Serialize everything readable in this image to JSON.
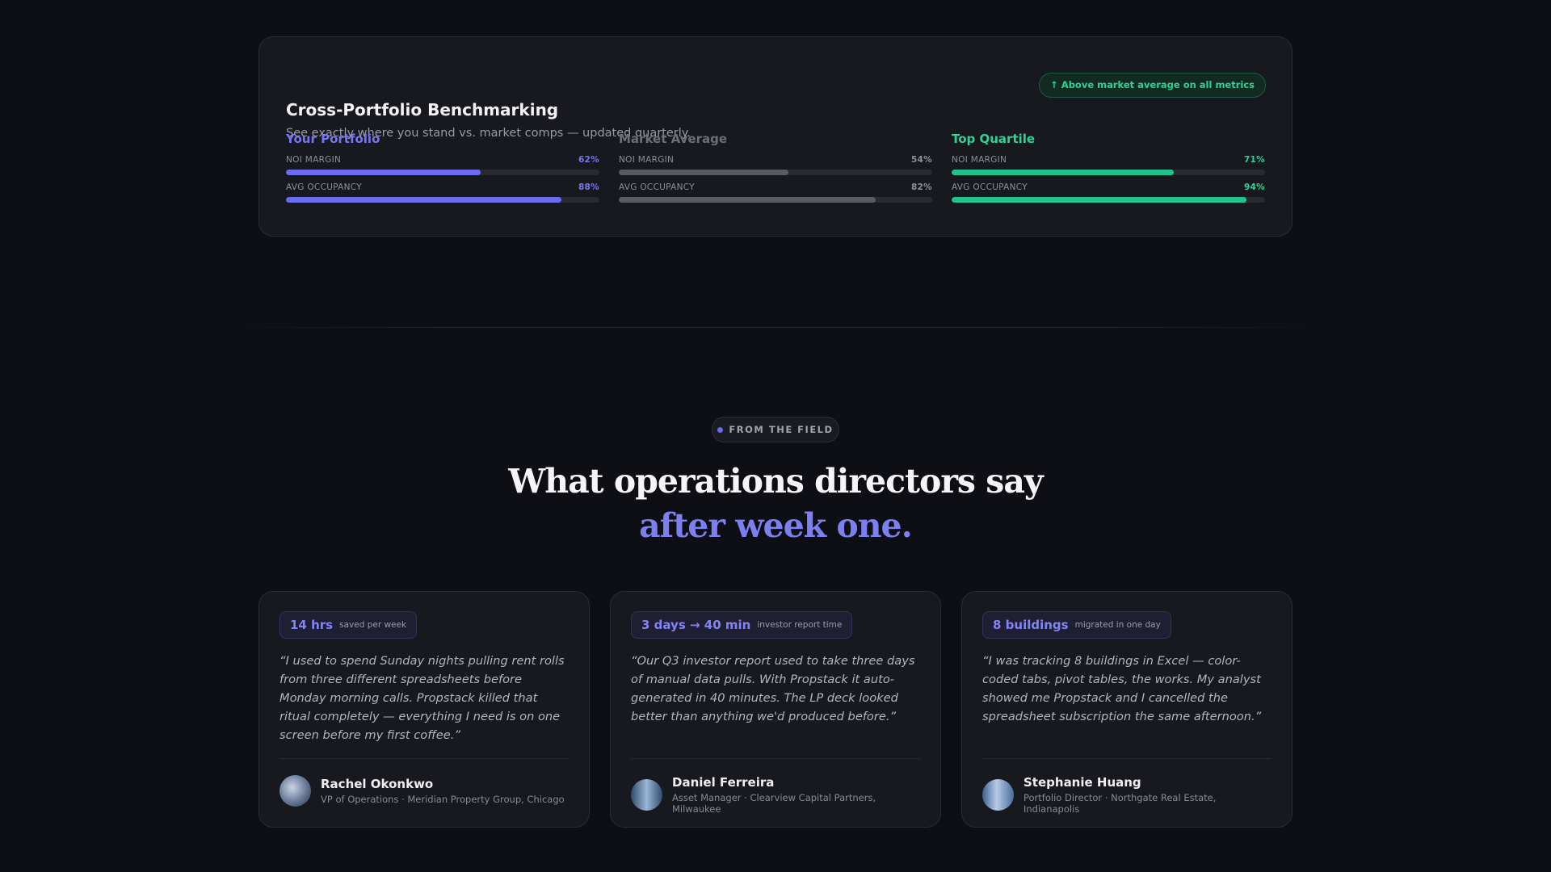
{
  "benchmark": {
    "title": "Cross-Portfolio Benchmarking",
    "subtitle": "See exactly where you stand vs. market comps — updated quarterly.",
    "badge": "↑ Above market average on all metrics",
    "columns": [
      {
        "name": "Your Portfolio",
        "color": "#6a6cf0",
        "name_color": "#7577f2",
        "metrics": [
          {
            "label": "NOI MARGIN",
            "value": 62,
            "value_label": "62%"
          },
          {
            "label": "AVG OCCUPANCY",
            "value": 88,
            "value_label": "88%"
          }
        ]
      },
      {
        "name": "Market Average",
        "color": "#5a5a62",
        "name_color": "#6e6e76",
        "metrics": [
          {
            "label": "NOI MARGIN",
            "value": 54,
            "value_label": "54%"
          },
          {
            "label": "AVG OCCUPANCY",
            "value": 82,
            "value_label": "82%"
          }
        ]
      },
      {
        "name": "Top Quartile",
        "color": "#22c38a",
        "name_color": "#2fd393",
        "metrics": [
          {
            "label": "NOI MARGIN",
            "value": 71,
            "value_label": "71%"
          },
          {
            "label": "AVG OCCUPANCY",
            "value": 94,
            "value_label": "94%"
          }
        ]
      }
    ]
  },
  "testimonials": {
    "badge": "FROM THE FIELD",
    "heading": "What operations directors say",
    "heading_accent": "after week one.",
    "cards": [
      {
        "stat": "14 hrs",
        "stat_label": "saved per week",
        "quote": "“I used to spend Sunday nights pulling rent rolls from three different spreadsheets before Monday morning calls. Propstack killed that ritual completely — everything I need is on one screen before my first coffee.”",
        "name": "Rachel Okonkwo",
        "role": "VP of Operations · Meridian Property Group, Chicago"
      },
      {
        "stat": "3 days → 40 min",
        "stat_label": "investor report time",
        "quote": "“Our Q3 investor report used to take three days of manual data pulls. With Propstack it auto-generated in 40 minutes. The LP deck looked better than anything we'd produced before.”",
        "name": "Daniel Ferreira",
        "role": "Asset Manager · Clearview Capital Partners, Milwaukee"
      },
      {
        "stat": "8 buildings",
        "stat_label": "migrated in one day",
        "quote": "“I was tracking 8 buildings in Excel — color-coded tabs, pivot tables, the works. My analyst showed me Propstack and I cancelled the spreadsheet subscription the same afternoon.”",
        "name": "Stephanie Huang",
        "role": "Portfolio Director · Northgate Real Estate, Indianapolis"
      }
    ]
  }
}
